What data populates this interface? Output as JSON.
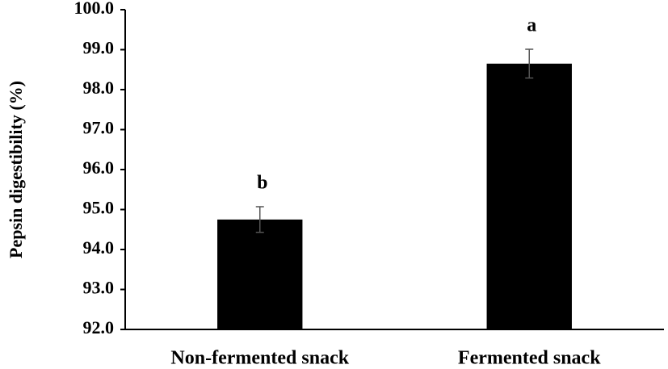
{
  "chart_data": {
    "type": "bar",
    "y_label": "Pepsin digestibility (%)",
    "categories": [
      "Non-fermented snack",
      "Fermented snack"
    ],
    "values": [
      94.75,
      98.65
    ],
    "errors": [
      0.32,
      0.36
    ],
    "annotations": [
      "b",
      "a"
    ],
    "color": "#000000",
    "ylim": [
      92,
      100
    ],
    "yticks": [
      {
        "value": 92,
        "label": "92.0"
      },
      {
        "value": 93,
        "label": "93.0"
      },
      {
        "value": 94,
        "label": "94.0"
      },
      {
        "value": 95,
        "label": "95.0"
      },
      {
        "value": 96,
        "label": "96.0"
      },
      {
        "value": 97,
        "label": "97.0"
      },
      {
        "value": 98,
        "label": "98.0"
      },
      {
        "value": 99,
        "label": "99.0"
      },
      {
        "value": 100,
        "label": "100.0"
      }
    ],
    "grid": false
  }
}
